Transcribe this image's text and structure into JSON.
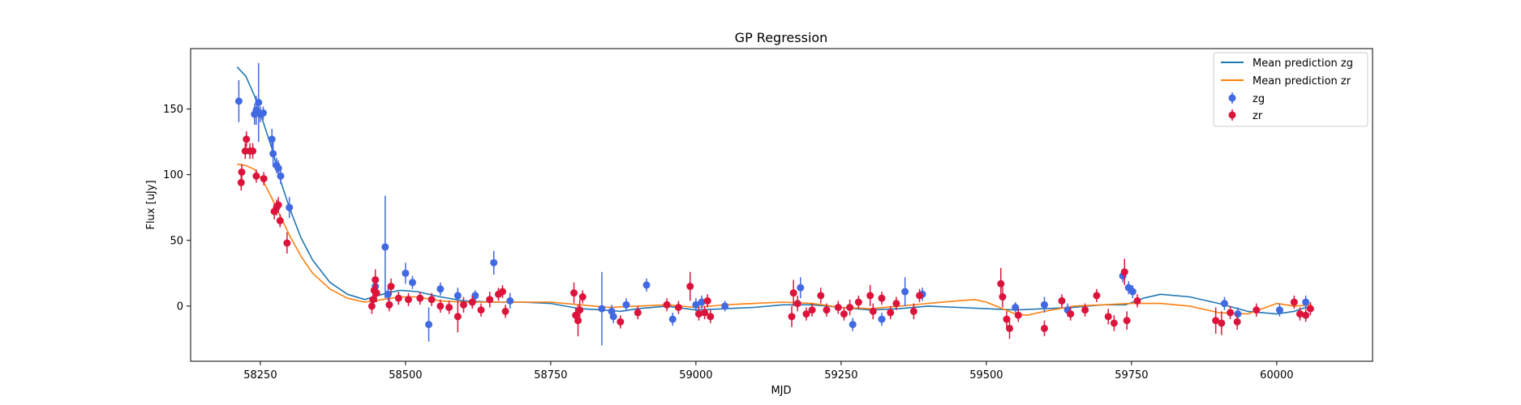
{
  "chart_data": {
    "type": "scatter",
    "title": "GP Regression",
    "xlabel": "MJD",
    "ylabel": "Flux [uJy]",
    "xlim": [
      58130,
      60165
    ],
    "ylim": [
      -42,
      196
    ],
    "x_ticks": [
      58250,
      58500,
      58750,
      59000,
      59250,
      59500,
      59750,
      60000
    ],
    "y_ticks": [
      0,
      50,
      100,
      150
    ],
    "legend_position": "top-right",
    "legend": [
      {
        "key": "mean_zg",
        "label": "Mean prediction zg"
      },
      {
        "key": "mean_zr",
        "label": "Mean prediction zr"
      },
      {
        "key": "zg",
        "label": "zg"
      },
      {
        "key": "zr",
        "label": "zr"
      }
    ],
    "colors": {
      "mean_zg": "#1f77b4",
      "mean_zr": "#ff7f0e",
      "zg": "#4169e1",
      "zr": "#dc143c"
    },
    "mean_prediction": {
      "zg": [
        [
          58210,
          182
        ],
        [
          58225,
          175
        ],
        [
          58240,
          160
        ],
        [
          58255,
          140
        ],
        [
          58270,
          120
        ],
        [
          58285,
          95
        ],
        [
          58300,
          75
        ],
        [
          58320,
          52
        ],
        [
          58340,
          35
        ],
        [
          58370,
          18
        ],
        [
          58400,
          9
        ],
        [
          58430,
          5
        ],
        [
          58460,
          9
        ],
        [
          58490,
          12
        ],
        [
          58520,
          11
        ],
        [
          58560,
          7
        ],
        [
          58600,
          4
        ],
        [
          58650,
          3
        ],
        [
          58700,
          3
        ],
        [
          58750,
          2
        ],
        [
          58800,
          -2
        ],
        [
          58840,
          -3
        ],
        [
          58870,
          -4
        ],
        [
          58900,
          -2
        ],
        [
          58950,
          0
        ],
        [
          59000,
          -3
        ],
        [
          59050,
          -2
        ],
        [
          59100,
          -1
        ],
        [
          59150,
          1
        ],
        [
          59200,
          1
        ],
        [
          59250,
          -1
        ],
        [
          59300,
          -3
        ],
        [
          59350,
          -2
        ],
        [
          59400,
          0
        ],
        [
          59450,
          -1
        ],
        [
          59500,
          -2
        ],
        [
          59550,
          -3
        ],
        [
          59600,
          -2
        ],
        [
          59650,
          -1
        ],
        [
          59700,
          1
        ],
        [
          59740,
          1
        ],
        [
          59770,
          6
        ],
        [
          59800,
          9
        ],
        [
          59850,
          7
        ],
        [
          59900,
          2
        ],
        [
          59950,
          -4
        ],
        [
          60000,
          -6
        ],
        [
          60030,
          -4
        ],
        [
          60050,
          -1
        ],
        [
          60060,
          0
        ]
      ],
      "zr": [
        [
          58210,
          108
        ],
        [
          58225,
          107
        ],
        [
          58240,
          104
        ],
        [
          58255,
          95
        ],
        [
          58270,
          82
        ],
        [
          58285,
          68
        ],
        [
          58300,
          54
        ],
        [
          58320,
          38
        ],
        [
          58340,
          25
        ],
        [
          58370,
          13
        ],
        [
          58400,
          6
        ],
        [
          58430,
          3
        ],
        [
          58460,
          5
        ],
        [
          58490,
          7
        ],
        [
          58520,
          7
        ],
        [
          58560,
          4
        ],
        [
          58600,
          3
        ],
        [
          58650,
          3
        ],
        [
          58700,
          3
        ],
        [
          58750,
          3
        ],
        [
          58800,
          1
        ],
        [
          58850,
          -1
        ],
        [
          58900,
          0
        ],
        [
          58950,
          1
        ],
        [
          59000,
          -1
        ],
        [
          59050,
          1
        ],
        [
          59100,
          2
        ],
        [
          59150,
          3
        ],
        [
          59200,
          2
        ],
        [
          59250,
          -1
        ],
        [
          59300,
          -2
        ],
        [
          59350,
          0
        ],
        [
          59400,
          2
        ],
        [
          59450,
          4
        ],
        [
          59480,
          5
        ],
        [
          59500,
          3
        ],
        [
          59550,
          -6
        ],
        [
          59570,
          -7
        ],
        [
          59600,
          -4
        ],
        [
          59650,
          0
        ],
        [
          59700,
          1
        ],
        [
          59750,
          2
        ],
        [
          59800,
          2
        ],
        [
          59850,
          0
        ],
        [
          59900,
          -5
        ],
        [
          59950,
          -6
        ],
        [
          60000,
          2
        ],
        [
          60030,
          0
        ],
        [
          60060,
          1
        ]
      ]
    },
    "observations": {
      "zg": [
        [
          58213,
          156,
          16
        ],
        [
          58240,
          146,
          8
        ],
        [
          58243,
          149,
          11
        ],
        [
          58247,
          155,
          30
        ],
        [
          58250,
          146,
          6
        ],
        [
          58255,
          147,
          5
        ],
        [
          58270,
          127,
          8
        ],
        [
          58272,
          116,
          10
        ],
        [
          58278,
          107,
          6
        ],
        [
          58281,
          105,
          6
        ],
        [
          58285,
          99,
          6
        ],
        [
          58300,
          75,
          8
        ],
        [
          58448,
          15,
          5
        ],
        [
          58465,
          45,
          39
        ],
        [
          58470,
          9,
          5
        ],
        [
          58500,
          25,
          8
        ],
        [
          58512,
          18,
          5
        ],
        [
          58540,
          -14,
          13
        ],
        [
          58560,
          13,
          5
        ],
        [
          58590,
          8,
          6
        ],
        [
          58620,
          8,
          4
        ],
        [
          58652,
          33,
          9
        ],
        [
          58680,
          4,
          6
        ],
        [
          58838,
          -2,
          28
        ],
        [
          58855,
          -4,
          5
        ],
        [
          58858,
          -8,
          5
        ],
        [
          58880,
          1,
          5
        ],
        [
          58915,
          16,
          5
        ],
        [
          58960,
          -10,
          5
        ],
        [
          59000,
          1,
          5
        ],
        [
          59010,
          3,
          5
        ],
        [
          59050,
          0,
          4
        ],
        [
          59180,
          14,
          8
        ],
        [
          59270,
          -14,
          5
        ],
        [
          59320,
          -10,
          5
        ],
        [
          59360,
          11,
          11
        ],
        [
          59390,
          9,
          5
        ],
        [
          59550,
          -1,
          4
        ],
        [
          59600,
          1,
          6
        ],
        [
          59640,
          -3,
          5
        ],
        [
          59735,
          23,
          5
        ],
        [
          59745,
          14,
          5
        ],
        [
          59752,
          11,
          5
        ],
        [
          59910,
          2,
          5
        ],
        [
          59933,
          -6,
          5
        ],
        [
          60005,
          -3,
          5
        ],
        [
          60050,
          3,
          5
        ]
      ],
      "zr": [
        [
          58217,
          94,
          6
        ],
        [
          58218,
          102,
          6
        ],
        [
          58224,
          118,
          6
        ],
        [
          58226,
          127,
          6
        ],
        [
          58232,
          118,
          6
        ],
        [
          58237,
          118,
          6
        ],
        [
          58243,
          99,
          5
        ],
        [
          58256,
          97,
          5
        ],
        [
          58274,
          72,
          6
        ],
        [
          58278,
          75,
          6
        ],
        [
          58281,
          77,
          6
        ],
        [
          58284,
          65,
          5
        ],
        [
          58296,
          48,
          8
        ],
        [
          58442,
          0,
          6
        ],
        [
          58444,
          5,
          6
        ],
        [
          58446,
          12,
          7
        ],
        [
          58448,
          20,
          8
        ],
        [
          58450,
          10,
          7
        ],
        [
          58472,
          1,
          5
        ],
        [
          58475,
          15,
          6
        ],
        [
          58488,
          6,
          5
        ],
        [
          58505,
          5,
          5
        ],
        [
          58525,
          6,
          5
        ],
        [
          58545,
          5,
          5
        ],
        [
          58560,
          0,
          5
        ],
        [
          58575,
          -1,
          5
        ],
        [
          58590,
          -8,
          12
        ],
        [
          58600,
          1,
          6
        ],
        [
          58615,
          3,
          5
        ],
        [
          58630,
          -3,
          5
        ],
        [
          58645,
          5,
          6
        ],
        [
          58660,
          9,
          5
        ],
        [
          58667,
          11,
          5
        ],
        [
          58672,
          -4,
          5
        ],
        [
          58790,
          10,
          8
        ],
        [
          58793,
          -7,
          6
        ],
        [
          58797,
          -11,
          12
        ],
        [
          58800,
          -3,
          8
        ],
        [
          58805,
          7,
          5
        ],
        [
          58870,
          -12,
          5
        ],
        [
          58900,
          -5,
          5
        ],
        [
          58950,
          1,
          5
        ],
        [
          58970,
          -1,
          5
        ],
        [
          58990,
          15,
          11
        ],
        [
          59005,
          -6,
          5
        ],
        [
          59015,
          -5,
          5
        ],
        [
          59020,
          4,
          5
        ],
        [
          59025,
          -8,
          5
        ],
        [
          59165,
          -8,
          8
        ],
        [
          59168,
          10,
          10
        ],
        [
          59175,
          2,
          6
        ],
        [
          59190,
          -6,
          5
        ],
        [
          59200,
          -3,
          5
        ],
        [
          59215,
          8,
          6
        ],
        [
          59225,
          -3,
          5
        ],
        [
          59245,
          -1,
          5
        ],
        [
          59255,
          -6,
          5
        ],
        [
          59265,
          -1,
          6
        ],
        [
          59280,
          3,
          5
        ],
        [
          59300,
          8,
          8
        ],
        [
          59305,
          -4,
          6
        ],
        [
          59320,
          6,
          5
        ],
        [
          59335,
          -5,
          5
        ],
        [
          59345,
          2,
          5
        ],
        [
          59375,
          -4,
          6
        ],
        [
          59385,
          8,
          5
        ],
        [
          59525,
          17,
          12
        ],
        [
          59528,
          7,
          8
        ],
        [
          59535,
          -10,
          6
        ],
        [
          59540,
          -17,
          8
        ],
        [
          59555,
          -7,
          5
        ],
        [
          59600,
          -17,
          6
        ],
        [
          59630,
          4,
          5
        ],
        [
          59645,
          -6,
          5
        ],
        [
          59670,
          -3,
          5
        ],
        [
          59690,
          8,
          5
        ],
        [
          59710,
          -8,
          6
        ],
        [
          59720,
          -13,
          6
        ],
        [
          59738,
          26,
          10
        ],
        [
          59742,
          -11,
          7
        ],
        [
          59760,
          4,
          5
        ],
        [
          59895,
          -11,
          10
        ],
        [
          59905,
          -13,
          9
        ],
        [
          59920,
          -5,
          5
        ],
        [
          59932,
          -12,
          6
        ],
        [
          59965,
          -3,
          5
        ],
        [
          60030,
          3,
          5
        ],
        [
          60040,
          -6,
          5
        ],
        [
          60050,
          -7,
          5
        ],
        [
          60058,
          -2,
          5
        ]
      ]
    }
  }
}
